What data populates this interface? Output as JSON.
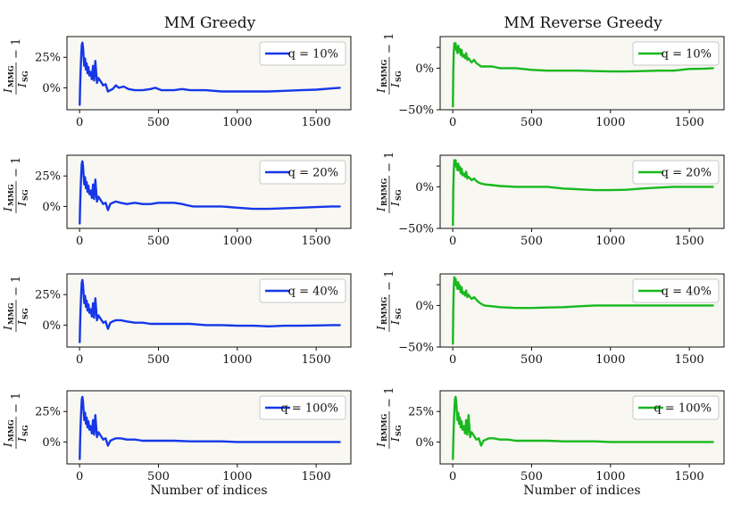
{
  "figure": {
    "column_titles": [
      "MM Greedy",
      "MM Reverse Greedy"
    ],
    "xlabel": "Number of indices",
    "ylabel_left": {
      "main": "I",
      "num_sub": "MMG",
      "den_sub": "SG",
      "suffix": "− 1"
    },
    "ylabel_right": {
      "main": "I",
      "num_sub": "RMMG",
      "den_sub": "SG",
      "suffix": "− 1"
    }
  },
  "colors": {
    "blue": "#1537e8",
    "green": "#18b81e"
  },
  "chart_data": [
    {
      "id": "g10",
      "type": "line",
      "column": "MM Greedy",
      "legend": "q = 10%",
      "ylim": [
        -0.18,
        0.42
      ],
      "yticks": [
        0,
        0.25
      ],
      "yticklabels": [
        "0%",
        "25%"
      ],
      "xlim": [
        -80,
        1720
      ],
      "xticks": [
        0,
        500,
        1000,
        1500
      ],
      "xticklabels": [
        "0",
        "500",
        "1000",
        "1500"
      ],
      "x": [
        1,
        3,
        6,
        10,
        14,
        18,
        22,
        26,
        30,
        35,
        40,
        45,
        50,
        56,
        62,
        70,
        78,
        85,
        92,
        100,
        110,
        120,
        135,
        150,
        165,
        180,
        195,
        210,
        230,
        250,
        280,
        310,
        350,
        400,
        450,
        480,
        520,
        600,
        650,
        700,
        800,
        900,
        1000,
        1100,
        1200,
        1300,
        1400,
        1500,
        1600,
        1650
      ],
      "y": [
        -0.14,
        0.0,
        0.12,
        0.25,
        0.35,
        0.37,
        0.33,
        0.25,
        0.18,
        0.24,
        0.15,
        0.2,
        0.12,
        0.17,
        0.1,
        0.13,
        0.07,
        0.18,
        0.06,
        0.22,
        0.04,
        0.08,
        0.05,
        0.02,
        0.03,
        -0.03,
        -0.02,
        -0.01,
        0.02,
        0.0,
        0.01,
        -0.01,
        -0.02,
        -0.02,
        -0.01,
        0.0,
        -0.02,
        -0.02,
        -0.01,
        -0.02,
        -0.02,
        -0.03,
        -0.03,
        -0.03,
        -0.03,
        -0.025,
        -0.02,
        -0.015,
        -0.005,
        0.0
      ]
    },
    {
      "id": "rg10",
      "type": "line",
      "column": "MM Reverse Greedy",
      "legend": "q = 10%",
      "ylim": [
        -0.5,
        0.38
      ],
      "yticks": [
        -0.5,
        0,
        0.25
      ],
      "yticklabels": [
        "−50%",
        "0%",
        ""
      ],
      "xlim": [
        -80,
        1720
      ],
      "xticks": [
        0,
        500,
        1000,
        1500
      ],
      "xticklabels": [
        "0",
        "500",
        "1000",
        "1500"
      ],
      "x": [
        1,
        3,
        6,
        10,
        14,
        18,
        22,
        26,
        30,
        35,
        40,
        45,
        50,
        56,
        62,
        70,
        78,
        85,
        92,
        100,
        110,
        120,
        135,
        150,
        165,
        180,
        200,
        250,
        300,
        400,
        500,
        600,
        700,
        800,
        900,
        1000,
        1100,
        1200,
        1300,
        1400,
        1500,
        1600,
        1650
      ],
      "y": [
        -0.46,
        -0.05,
        0.18,
        0.3,
        0.24,
        0.3,
        0.22,
        0.25,
        0.18,
        0.27,
        0.2,
        0.23,
        0.16,
        0.22,
        0.14,
        0.16,
        0.12,
        0.18,
        0.1,
        0.12,
        0.09,
        0.07,
        0.1,
        0.06,
        0.04,
        0.02,
        0.02,
        0.02,
        0.0,
        0.0,
        -0.02,
        -0.03,
        -0.03,
        -0.03,
        -0.035,
        -0.04,
        -0.04,
        -0.035,
        -0.03,
        -0.03,
        -0.01,
        -0.005,
        0.0
      ]
    },
    {
      "id": "g20",
      "type": "line",
      "column": "MM Greedy",
      "legend": "q = 20%",
      "ylim": [
        -0.18,
        0.42
      ],
      "yticks": [
        0,
        0.25
      ],
      "yticklabels": [
        "0%",
        "25%"
      ],
      "xlim": [
        -80,
        1720
      ],
      "xticks": [
        0,
        500,
        1000,
        1500
      ],
      "xticklabels": [
        "0",
        "500",
        "1000",
        "1500"
      ],
      "x": [
        1,
        3,
        6,
        10,
        14,
        18,
        22,
        26,
        30,
        35,
        40,
        45,
        50,
        56,
        62,
        70,
        78,
        85,
        92,
        100,
        110,
        120,
        135,
        150,
        165,
        180,
        195,
        210,
        230,
        260,
        300,
        350,
        400,
        450,
        500,
        550,
        600,
        650,
        680,
        720,
        800,
        900,
        1000,
        1100,
        1200,
        1300,
        1400,
        1500,
        1600,
        1650
      ],
      "y": [
        -0.14,
        0.0,
        0.12,
        0.25,
        0.35,
        0.37,
        0.33,
        0.25,
        0.18,
        0.24,
        0.15,
        0.2,
        0.12,
        0.17,
        0.1,
        0.13,
        0.07,
        0.18,
        0.06,
        0.22,
        0.04,
        0.08,
        0.05,
        0.02,
        0.03,
        -0.03,
        0.02,
        0.03,
        0.04,
        0.03,
        0.02,
        0.03,
        0.02,
        0.02,
        0.03,
        0.03,
        0.03,
        0.02,
        0.01,
        0.0,
        0.0,
        0.0,
        -0.01,
        -0.02,
        -0.02,
        -0.015,
        -0.01,
        -0.005,
        0.0,
        0.0
      ]
    },
    {
      "id": "rg20",
      "type": "line",
      "column": "MM Reverse Greedy",
      "legend": "q = 20%",
      "ylim": [
        -0.5,
        0.38
      ],
      "yticks": [
        -0.5,
        0,
        0.25
      ],
      "yticklabels": [
        "−50%",
        "0%",
        ""
      ],
      "xlim": [
        -80,
        1720
      ],
      "xticks": [
        0,
        500,
        1000,
        1500
      ],
      "xticklabels": [
        "0",
        "500",
        "1000",
        "1500"
      ],
      "x": [
        1,
        3,
        6,
        10,
        14,
        18,
        22,
        26,
        30,
        35,
        40,
        45,
        50,
        56,
        62,
        70,
        78,
        85,
        92,
        100,
        110,
        120,
        135,
        150,
        165,
        180,
        200,
        250,
        300,
        400,
        500,
        600,
        700,
        800,
        900,
        1000,
        1100,
        1200,
        1300,
        1400,
        1500,
        1600,
        1650
      ],
      "y": [
        -0.46,
        -0.05,
        0.18,
        0.32,
        0.26,
        0.32,
        0.24,
        0.27,
        0.2,
        0.28,
        0.2,
        0.24,
        0.16,
        0.22,
        0.14,
        0.16,
        0.12,
        0.18,
        0.1,
        0.12,
        0.1,
        0.08,
        0.1,
        0.07,
        0.05,
        0.04,
        0.03,
        0.02,
        0.01,
        0.0,
        0.0,
        0.0,
        -0.02,
        -0.03,
        -0.04,
        -0.04,
        -0.035,
        -0.02,
        -0.01,
        0.0,
        0.0,
        0.0,
        0.0
      ]
    },
    {
      "id": "g40",
      "type": "line",
      "column": "MM Greedy",
      "legend": "q = 40%",
      "ylim": [
        -0.18,
        0.42
      ],
      "yticks": [
        0,
        0.25
      ],
      "yticklabels": [
        "0%",
        "25%"
      ],
      "xlim": [
        -80,
        1720
      ],
      "xticks": [
        0,
        500,
        1000,
        1500
      ],
      "xticklabels": [
        "0",
        "500",
        "1000",
        "1500"
      ],
      "x": [
        1,
        3,
        6,
        10,
        14,
        18,
        22,
        26,
        30,
        35,
        40,
        45,
        50,
        56,
        62,
        70,
        78,
        85,
        92,
        100,
        110,
        120,
        135,
        150,
        165,
        180,
        195,
        210,
        230,
        260,
        300,
        350,
        400,
        450,
        500,
        600,
        700,
        800,
        900,
        1000,
        1100,
        1200,
        1300,
        1400,
        1500,
        1600,
        1650
      ],
      "y": [
        -0.14,
        0.0,
        0.12,
        0.25,
        0.35,
        0.37,
        0.33,
        0.25,
        0.18,
        0.24,
        0.15,
        0.2,
        0.12,
        0.17,
        0.1,
        0.13,
        0.07,
        0.18,
        0.06,
        0.22,
        0.04,
        0.08,
        0.05,
        0.02,
        0.03,
        -0.03,
        0.02,
        0.03,
        0.04,
        0.04,
        0.03,
        0.02,
        0.02,
        0.01,
        0.01,
        0.01,
        0.01,
        0.0,
        0.0,
        -0.005,
        -0.005,
        -0.01,
        -0.005,
        -0.005,
        -0.003,
        0.0,
        0.0
      ]
    },
    {
      "id": "rg40",
      "type": "line",
      "column": "MM Reverse Greedy",
      "legend": "q = 40%",
      "ylim": [
        -0.5,
        0.38
      ],
      "yticks": [
        -0.5,
        0,
        0.25
      ],
      "yticklabels": [
        "−50%",
        "0%",
        ""
      ],
      "xlim": [
        -80,
        1720
      ],
      "xticks": [
        0,
        500,
        1000,
        1500
      ],
      "xticklabels": [
        "0",
        "500",
        "1000",
        "1500"
      ],
      "x": [
        1,
        3,
        6,
        10,
        14,
        18,
        22,
        26,
        30,
        35,
        40,
        45,
        50,
        56,
        62,
        70,
        78,
        85,
        92,
        100,
        110,
        120,
        135,
        150,
        165,
        180,
        200,
        250,
        300,
        400,
        500,
        600,
        700,
        800,
        900,
        1000,
        1100,
        1200,
        1300,
        1400,
        1500,
        1600,
        1650
      ],
      "y": [
        -0.46,
        -0.05,
        0.2,
        0.34,
        0.26,
        0.32,
        0.24,
        0.28,
        0.2,
        0.28,
        0.2,
        0.24,
        0.16,
        0.22,
        0.14,
        0.16,
        0.12,
        0.18,
        0.1,
        0.13,
        0.1,
        0.08,
        0.1,
        0.07,
        0.04,
        0.02,
        0.0,
        -0.01,
        -0.02,
        -0.03,
        -0.03,
        -0.025,
        -0.02,
        -0.01,
        0.0,
        0.0,
        0.0,
        0.0,
        0.0,
        0.0,
        0.0,
        0.0,
        0.0
      ]
    },
    {
      "id": "g100",
      "type": "line",
      "column": "MM Greedy",
      "legend": "q = 100%",
      "ylim": [
        -0.18,
        0.42
      ],
      "yticks": [
        0,
        0.25
      ],
      "yticklabels": [
        "0%",
        "25%"
      ],
      "xlim": [
        -80,
        1720
      ],
      "xticks": [
        0,
        500,
        1000,
        1500
      ],
      "xticklabels": [
        "0",
        "500",
        "1000",
        "1500"
      ],
      "xlabel": "Number of indices",
      "x": [
        1,
        3,
        6,
        10,
        14,
        18,
        22,
        26,
        30,
        35,
        40,
        45,
        50,
        56,
        62,
        70,
        78,
        85,
        92,
        100,
        110,
        120,
        135,
        150,
        165,
        180,
        195,
        210,
        230,
        260,
        300,
        350,
        400,
        450,
        500,
        600,
        700,
        800,
        900,
        1000,
        1100,
        1200,
        1300,
        1400,
        1500,
        1600,
        1650
      ],
      "y": [
        -0.14,
        0.0,
        0.12,
        0.25,
        0.35,
        0.37,
        0.33,
        0.25,
        0.18,
        0.24,
        0.15,
        0.2,
        0.12,
        0.17,
        0.1,
        0.13,
        0.07,
        0.18,
        0.06,
        0.22,
        0.04,
        0.08,
        0.05,
        0.02,
        0.03,
        -0.03,
        0.01,
        0.02,
        0.03,
        0.03,
        0.02,
        0.02,
        0.01,
        0.01,
        0.01,
        0.01,
        0.005,
        0.005,
        0.005,
        0.0,
        0.0,
        0.0,
        0.0,
        0.0,
        0.0,
        0.0,
        0.0
      ]
    },
    {
      "id": "rg100",
      "type": "line",
      "column": "MM Reverse Greedy",
      "legend": "q = 100%",
      "ylim": [
        -0.18,
        0.42
      ],
      "yticks": [
        0,
        0.25
      ],
      "yticklabels": [
        "0%",
        "25%"
      ],
      "xlim": [
        -80,
        1720
      ],
      "xticks": [
        0,
        500,
        1000,
        1500
      ],
      "xticklabels": [
        "0",
        "500",
        "1000",
        "1500"
      ],
      "xlabel": "Number of indices",
      "x": [
        1,
        3,
        6,
        10,
        14,
        18,
        22,
        26,
        30,
        35,
        40,
        45,
        50,
        56,
        62,
        70,
        78,
        85,
        92,
        100,
        110,
        120,
        135,
        150,
        165,
        180,
        195,
        210,
        230,
        260,
        300,
        350,
        400,
        450,
        500,
        600,
        700,
        800,
        900,
        1000,
        1100,
        1200,
        1300,
        1400,
        1500,
        1600,
        1650
      ],
      "y": [
        -0.14,
        0.0,
        0.12,
        0.25,
        0.35,
        0.37,
        0.33,
        0.25,
        0.18,
        0.24,
        0.15,
        0.2,
        0.12,
        0.17,
        0.1,
        0.13,
        0.07,
        0.18,
        0.06,
        0.22,
        0.04,
        0.08,
        0.05,
        0.02,
        0.03,
        -0.03,
        0.01,
        0.02,
        0.03,
        0.03,
        0.02,
        0.02,
        0.01,
        0.01,
        0.01,
        0.01,
        0.005,
        0.005,
        0.005,
        0.0,
        0.0,
        0.0,
        0.0,
        0.0,
        0.0,
        0.0,
        0.0
      ]
    }
  ]
}
